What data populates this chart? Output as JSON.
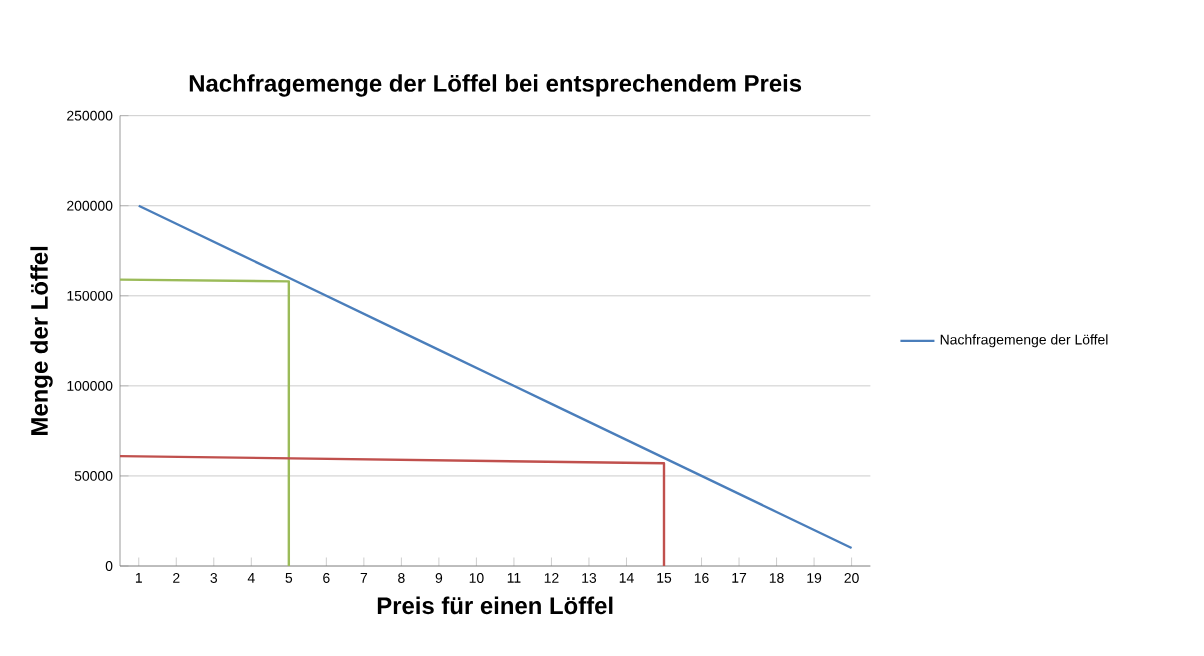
{
  "chart_data": {
    "type": "line",
    "title": "Nachfragemenge der Löffel bei entsprechendem Preis",
    "xlabel": "Preis für einen Löffel",
    "ylabel": "Menge der Löffel",
    "x": [
      1,
      2,
      3,
      4,
      5,
      6,
      7,
      8,
      9,
      10,
      11,
      12,
      13,
      14,
      15,
      16,
      17,
      18,
      19,
      20
    ],
    "xlim": [
      0.5,
      20.5
    ],
    "xticks": [
      1,
      2,
      3,
      4,
      5,
      6,
      7,
      8,
      9,
      10,
      11,
      12,
      13,
      14,
      15,
      16,
      17,
      18,
      19,
      20
    ],
    "ylim": [
      0,
      250000
    ],
    "yticks": [
      0,
      50000,
      100000,
      150000,
      200000,
      250000
    ],
    "grid": "y",
    "legend": "right",
    "marker": "none",
    "line_style": "solid",
    "series": [
      {
        "name": "Nachfragemenge der Löffel",
        "color": "#4a7ebb",
        "values": [
          200000,
          190000,
          180000,
          170000,
          160000,
          150000,
          140000,
          130000,
          120000,
          110000,
          100000,
          90000,
          80000,
          70000,
          60000,
          50000,
          40000,
          30000,
          20000,
          10000
        ]
      },
      {
        "color": "#9bbb59",
        "x": [
          0.5,
          5,
          5
        ],
        "values": [
          159000,
          158000,
          0
        ]
      },
      {
        "color": "#c0504d",
        "x": [
          0.5,
          15,
          15
        ],
        "values": [
          61000,
          57000,
          0
        ]
      }
    ]
  }
}
